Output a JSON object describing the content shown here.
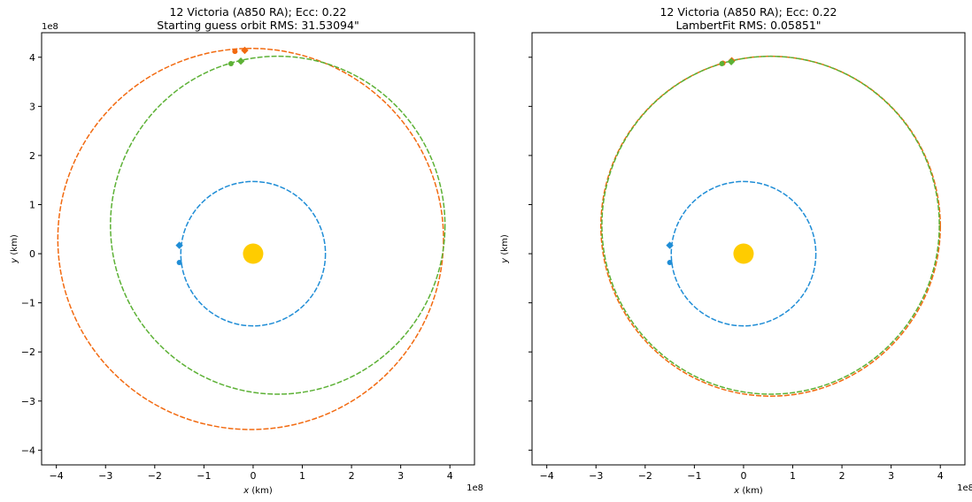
{
  "colors": {
    "earth": "#1f8dd6",
    "observed": "#f26a10",
    "fit": "#5cb135",
    "sun": "#ffcc00"
  },
  "chart_data": [
    {
      "type": "scatter",
      "title": "12 Victoria (A850 RA); Ecc: 0.22",
      "subtitle": "Starting guess orbit RMS: 31.53094\"",
      "xlabel_var": "x",
      "xlabel_unit": " (km)",
      "ylabel_var": "y",
      "ylabel_unit": " (km)",
      "xlim": [
        -4.3,
        4.5
      ],
      "ylim": [
        -4.3,
        4.5
      ],
      "xticks": [
        -4,
        -3,
        -2,
        -1,
        0,
        1,
        2,
        3,
        4
      ],
      "yticks": [
        -4,
        -3,
        -2,
        -1,
        0,
        1,
        2,
        3,
        4
      ],
      "show_ytick_labels": true,
      "offset_label": "1e8",
      "sun": [
        0,
        0
      ],
      "orbits": [
        {
          "color": "earth",
          "cx": 0,
          "cy": 0,
          "rx": 1.47,
          "ry": 1.47
        },
        {
          "color": "observed",
          "cx": -0.05,
          "cy": 0.3,
          "rx": 3.92,
          "ry": 3.88
        },
        {
          "color": "fit",
          "cx": 0.5,
          "cy": 0.58,
          "rx": 3.4,
          "ry": 3.44
        }
      ],
      "markers": [
        {
          "color": "earth",
          "shape": "diamond",
          "x": -1.5,
          "y": 0.17
        },
        {
          "color": "earth",
          "shape": "circle",
          "x": -1.5,
          "y": -0.18
        },
        {
          "color": "observed",
          "shape": "diamond",
          "x": -0.17,
          "y": 4.14
        },
        {
          "color": "observed",
          "shape": "circle",
          "x": -0.37,
          "y": 4.12
        },
        {
          "color": "fit",
          "shape": "diamond",
          "x": -0.25,
          "y": 3.92
        },
        {
          "color": "fit",
          "shape": "circle",
          "x": -0.45,
          "y": 3.87
        }
      ]
    },
    {
      "type": "scatter",
      "title": "12 Victoria (A850 RA); Ecc: 0.22",
      "subtitle": "LambertFit RMS: 0.05851\"",
      "xlabel_var": "x",
      "xlabel_unit": " (km)",
      "ylabel_var": "y",
      "ylabel_unit": " (km)",
      "xlim": [
        -4.3,
        4.5
      ],
      "ylim": [
        -4.3,
        4.5
      ],
      "xticks": [
        -4,
        -3,
        -2,
        -1,
        0,
        1,
        2,
        3,
        4
      ],
      "yticks": [
        -4,
        -3,
        -2,
        -1,
        0,
        1,
        2,
        3,
        4
      ],
      "show_ytick_labels": false,
      "offset_label": "1e8",
      "sun": [
        0,
        0
      ],
      "orbits": [
        {
          "color": "earth",
          "cx": 0,
          "cy": 0,
          "rx": 1.47,
          "ry": 1.47
        },
        {
          "color": "observed",
          "cx": 0.55,
          "cy": 0.56,
          "rx": 3.45,
          "ry": 3.46
        },
        {
          "color": "fit",
          "cx": 0.55,
          "cy": 0.58,
          "rx": 3.43,
          "ry": 3.44
        }
      ],
      "markers": [
        {
          "color": "earth",
          "shape": "diamond",
          "x": -1.5,
          "y": 0.17
        },
        {
          "color": "earth",
          "shape": "circle",
          "x": -1.5,
          "y": -0.18
        },
        {
          "color": "observed",
          "shape": "diamond",
          "x": -0.24,
          "y": 3.93
        },
        {
          "color": "observed",
          "shape": "circle",
          "x": -0.42,
          "y": 3.88
        },
        {
          "color": "fit",
          "shape": "diamond",
          "x": -0.25,
          "y": 3.91
        },
        {
          "color": "fit",
          "shape": "circle",
          "x": -0.44,
          "y": 3.87
        }
      ]
    }
  ]
}
